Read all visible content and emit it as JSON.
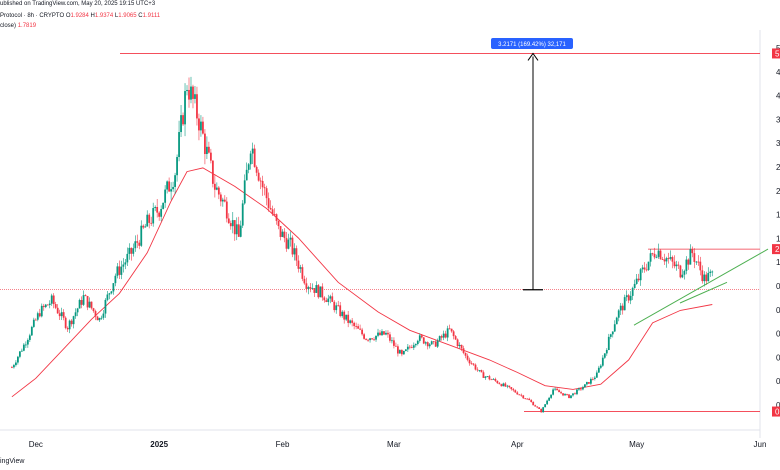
{
  "header": {
    "line1": "ublished on TradingView.com, May 20, 2025 19:15 UTC+3",
    "symbol": "Protocol · 8h · CRYPTO",
    "o_label": "O",
    "o_value": "1.9284",
    "h_label": "H",
    "h_value": "1.9374",
    "l_label": "L",
    "l_value": "1.9065",
    "c_label": "C",
    "c_value": "1.9111",
    "ma_label": "close)",
    "ma_value": "1.7819"
  },
  "footer": {
    "brand": "ingView"
  },
  "colors": {
    "up": "#089981",
    "down": "#f23645",
    "ma": "#f23645",
    "trend": "#4caf50",
    "hline": "#f23645",
    "badge": "#2962ff",
    "arrow": "#000000"
  },
  "annotation": {
    "measure_label": "3.2171 (169.42%) 32,171"
  },
  "chart_data": {
    "type": "candlestick",
    "x_tick_labels": [
      "Dec",
      "2025",
      "Feb",
      "Mar",
      "Apr",
      "May",
      "Jun"
    ],
    "y_tick_labels": [
      "5",
      "4",
      "4",
      "3",
      "3",
      "2",
      "2",
      "1",
      "1",
      "1",
      "0",
      "0",
      "0",
      "0",
      "0",
      "0"
    ],
    "price_badges": [
      "5",
      "2",
      "0"
    ],
    "levels": {
      "top": 5.1,
      "entry": 1.9,
      "range_high": 2.45,
      "bottom": 0.25
    },
    "ma": [
      {
        "date": "2024-11-25",
        "v": 0.45
      },
      {
        "date": "2024-12-01",
        "v": 0.7
      },
      {
        "date": "2024-12-08",
        "v": 1.1
      },
      {
        "date": "2024-12-15",
        "v": 1.5
      },
      {
        "date": "2024-12-22",
        "v": 1.85
      },
      {
        "date": "2024-12-29",
        "v": 2.4
      },
      {
        "date": "2025-01-04",
        "v": 3.1
      },
      {
        "date": "2025-01-08",
        "v": 3.5
      },
      {
        "date": "2025-01-12",
        "v": 3.55
      },
      {
        "date": "2025-01-20",
        "v": 3.3
      },
      {
        "date": "2025-01-28",
        "v": 3.0
      },
      {
        "date": "2025-02-05",
        "v": 2.6
      },
      {
        "date": "2025-02-15",
        "v": 2.0
      },
      {
        "date": "2025-02-25",
        "v": 1.6
      },
      {
        "date": "2025-03-05",
        "v": 1.35
      },
      {
        "date": "2025-03-15",
        "v": 1.15
      },
      {
        "date": "2025-03-25",
        "v": 0.95
      },
      {
        "date": "2025-04-01",
        "v": 0.78
      },
      {
        "date": "2025-04-08",
        "v": 0.6
      },
      {
        "date": "2025-04-15",
        "v": 0.55
      },
      {
        "date": "2025-04-22",
        "v": 0.62
      },
      {
        "date": "2025-04-29",
        "v": 0.95
      },
      {
        "date": "2025-05-05",
        "v": 1.45
      },
      {
        "date": "2025-05-12",
        "v": 1.62
      },
      {
        "date": "2025-05-20",
        "v": 1.7
      }
    ],
    "price_path": [
      {
        "date": "2024-11-25",
        "v": 0.85
      },
      {
        "date": "2024-11-28",
        "v": 1.15
      },
      {
        "date": "2024-12-02",
        "v": 1.6
      },
      {
        "date": "2024-12-05",
        "v": 1.75
      },
      {
        "date": "2024-12-09",
        "v": 1.4
      },
      {
        "date": "2024-12-13",
        "v": 1.8
      },
      {
        "date": "2024-12-17",
        "v": 1.5
      },
      {
        "date": "2024-12-21",
        "v": 2.1
      },
      {
        "date": "2024-12-25",
        "v": 2.4
      },
      {
        "date": "2024-12-29",
        "v": 2.8
      },
      {
        "date": "2025-01-01",
        "v": 3.0
      },
      {
        "date": "2025-01-05",
        "v": 3.5
      },
      {
        "date": "2025-01-08",
        "v": 4.7
      },
      {
        "date": "2025-01-11",
        "v": 4.2
      },
      {
        "date": "2025-01-15",
        "v": 3.3
      },
      {
        "date": "2025-01-18",
        "v": 3.0
      },
      {
        "date": "2025-01-21",
        "v": 2.6
      },
      {
        "date": "2025-01-24",
        "v": 3.9
      },
      {
        "date": "2025-01-27",
        "v": 3.3
      },
      {
        "date": "2025-01-31",
        "v": 2.7
      },
      {
        "date": "2025-02-03",
        "v": 2.5
      },
      {
        "date": "2025-02-07",
        "v": 2.0
      },
      {
        "date": "2025-02-12",
        "v": 1.8
      },
      {
        "date": "2025-02-17",
        "v": 1.5
      },
      {
        "date": "2025-02-22",
        "v": 1.25
      },
      {
        "date": "2025-02-27",
        "v": 1.3
      },
      {
        "date": "2025-03-03",
        "v": 1.0
      },
      {
        "date": "2025-03-07",
        "v": 1.25
      },
      {
        "date": "2025-03-11",
        "v": 1.15
      },
      {
        "date": "2025-03-15",
        "v": 1.35
      },
      {
        "date": "2025-03-19",
        "v": 1.0
      },
      {
        "date": "2025-03-23",
        "v": 0.75
      },
      {
        "date": "2025-03-27",
        "v": 0.65
      },
      {
        "date": "2025-04-01",
        "v": 0.5
      },
      {
        "date": "2025-04-04",
        "v": 0.4
      },
      {
        "date": "2025-04-07",
        "v": 0.25
      },
      {
        "date": "2025-04-10",
        "v": 0.55
      },
      {
        "date": "2025-04-14",
        "v": 0.45
      },
      {
        "date": "2025-04-18",
        "v": 0.6
      },
      {
        "date": "2025-04-21",
        "v": 0.75
      },
      {
        "date": "2025-04-23",
        "v": 1.05
      },
      {
        "date": "2025-04-26",
        "v": 1.55
      },
      {
        "date": "2025-04-30",
        "v": 1.9
      },
      {
        "date": "2025-05-03",
        "v": 2.2
      },
      {
        "date": "2025-05-06",
        "v": 2.45
      },
      {
        "date": "2025-05-09",
        "v": 2.3
      },
      {
        "date": "2025-05-12",
        "v": 2.15
      },
      {
        "date": "2025-05-15",
        "v": 2.4
      },
      {
        "date": "2025-05-18",
        "v": 2.05
      },
      {
        "date": "2025-05-20",
        "v": 2.1
      }
    ]
  }
}
